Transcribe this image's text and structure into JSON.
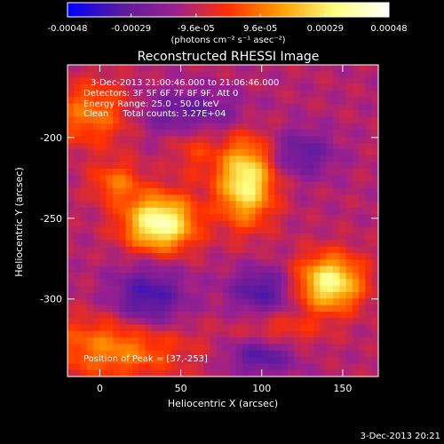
{
  "chart_data": {
    "type": "heatmap",
    "title": "Reconstructed RHESSI Image",
    "xlabel": "Heliocentric X (arcsec)",
    "ylabel": "Heliocentric Y (arcsec)",
    "xlim": [
      -20,
      172
    ],
    "ylim": [
      -348,
      -155
    ],
    "x_ticks": [
      0,
      50,
      100,
      150
    ],
    "y_ticks": [
      -200,
      -250,
      -300
    ],
    "colorbar": {
      "range": [
        -0.00048,
        0.00048
      ],
      "tick_values": [
        -0.00048,
        -0.00029,
        -9.6e-05,
        9.6e-05,
        0.00029,
        0.00048
      ],
      "tick_labels": [
        "-0.00048",
        "-0.00029",
        "-9.6e-05",
        "9.6e-05",
        "0.00029",
        "0.00048"
      ],
      "unit_label": "(photons cm⁻² s⁻¹ asec⁻²)",
      "colors": [
        "#0000ff",
        "#5a1aa0",
        "#9a2090",
        "#ff3000",
        "#ffa000",
        "#ffff80",
        "#ffffff"
      ]
    },
    "annotations": [
      "3-Dec-2013 21:00:46.000 to 21:06:46.000",
      "Detectors: 3F 5F 6F 7F 8F 9F, Att 0",
      "Energy Range: 25.0 - 50.0 keV",
      "Clean     Total counts: 3.27E+04"
    ],
    "peak_label": "Position of Peak = [37,-253]",
    "peak_position": [
      37,
      -253
    ],
    "sources": [
      {
        "x": 37,
        "y": -253,
        "sx": 15,
        "sy": 12,
        "amp": 0.00052
      },
      {
        "x": 90,
        "y": -227,
        "sx": 12,
        "sy": 18,
        "amp": 0.00046
      },
      {
        "x": 10,
        "y": -228,
        "sx": 11,
        "sy": 9,
        "amp": 0.0002
      },
      {
        "x": 142,
        "y": -290,
        "sx": 14,
        "sy": 12,
        "amp": 0.00046
      },
      {
        "x": -5,
        "y": -185,
        "sx": 18,
        "sy": 14,
        "amp": 0.00022
      },
      {
        "x": 58,
        "y": -205,
        "sx": 10,
        "sy": 14,
        "amp": 0.00012
      },
      {
        "x": 10,
        "y": -330,
        "sx": 30,
        "sy": 14,
        "amp": 0.00024
      },
      {
        "x": 112,
        "y": -320,
        "sx": 18,
        "sy": 8,
        "amp": 0.00012
      },
      {
        "x": 55,
        "y": -185,
        "sx": 22,
        "sy": 10,
        "amp": -0.0002
      },
      {
        "x": 30,
        "y": -300,
        "sx": 16,
        "sy": 14,
        "amp": -0.00025
      },
      {
        "x": 100,
        "y": -295,
        "sx": 14,
        "sy": 10,
        "amp": -0.00022
      },
      {
        "x": 125,
        "y": -210,
        "sx": 14,
        "sy": 10,
        "amp": -0.00018
      },
      {
        "x": 100,
        "y": -335,
        "sx": 14,
        "sy": 8,
        "amp": -0.00022
      }
    ],
    "baseline": -0.00012
  },
  "timestamp": "3-Dec-2013 20:21"
}
